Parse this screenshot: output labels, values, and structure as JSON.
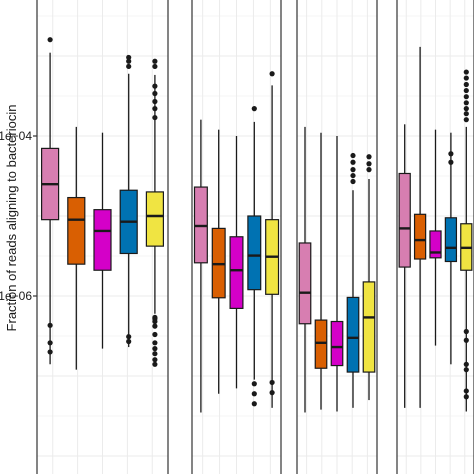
{
  "chart_data": {
    "type": "box",
    "ylabel": "Fraction of reads aligning to bacteriocin",
    "yscale": "log",
    "ylim": [
      3e-08,
      0.006
    ],
    "yticks": [
      {
        "value": 0.0001,
        "label": "1e−04"
      },
      {
        "value": 1e-06,
        "label": "1e−06"
      }
    ],
    "grid": true,
    "colors": [
      "#d77eb1",
      "#d95f02",
      "#d400c8",
      "#0072b2",
      "#f0e442"
    ],
    "panels": [
      {
        "boxes": [
          {
            "q1": 9e-06,
            "median": 2.5e-05,
            "q3": 7e-05,
            "whisker_low": 1.4e-07,
            "whisker_high": 0.0011,
            "outliers": [
              2e-07,
              2.6e-07,
              4.3e-07,
              0.0016
            ]
          },
          {
            "q1": 2.5e-06,
            "median": 9e-06,
            "q3": 1.7e-05,
            "whisker_low": 1.2e-07,
            "whisker_high": 0.00013
          },
          {
            "q1": 2.1e-06,
            "median": 6.5e-06,
            "q3": 1.2e-05,
            "whisker_low": 2.2e-07,
            "whisker_high": 0.00011
          },
          {
            "q1": 3.4e-06,
            "median": 8.5e-06,
            "q3": 2.1e-05,
            "whisker_low": 2.3e-07,
            "whisker_high": 0.0006,
            "outliers": [
              2.7e-07,
              3.1e-07,
              0.00074,
              0.00086,
              0.00096
            ]
          },
          {
            "q1": 4.2e-06,
            "median": 1e-05,
            "q3": 2e-05,
            "whisker_low": 6e-07,
            "whisker_high": 0.00058,
            "outliers": [
              1.4e-07,
              1.6e-07,
              1.9e-07,
              2.2e-07,
              2.6e-07,
              3.3e-07,
              4.2e-07,
              4.8e-07,
              5.2e-07,
              5.4e-07,
              0.00017,
              0.00022,
              0.00027,
              0.00034,
              0.00042,
              0.00074,
              0.00086
            ]
          }
        ]
      },
      {
        "boxes": [
          {
            "q1": 2.6e-06,
            "median": 7.5e-06,
            "q3": 2.3e-05,
            "whisker_low": 3.5e-08,
            "whisker_high": 0.00016
          },
          {
            "q1": 9.5e-07,
            "median": 2.5e-06,
            "q3": 7e-06,
            "whisker_low": 6e-08,
            "whisker_high": 0.00012
          },
          {
            "q1": 7e-07,
            "median": 2.1e-06,
            "q3": 5.5e-06,
            "whisker_low": 7e-08,
            "whisker_high": 0.0001
          },
          {
            "q1": 1.2e-06,
            "median": 3.2e-06,
            "q3": 1e-05,
            "whisker_low": 9e-08,
            "whisker_high": 0.00015,
            "outliers": [
              4.5e-08,
              6e-08,
              8e-08,
              0.00022
            ]
          },
          {
            "q1": 1.05e-06,
            "median": 3.1e-06,
            "q3": 9e-06,
            "whisker_low": 4e-08,
            "whisker_high": 0.00043,
            "outliers": [
              6.2e-08,
              8.3e-08,
              0.0006
            ]
          }
        ]
      },
      {
        "boxes": [
          {
            "q1": 4.5e-07,
            "median": 1.1e-06,
            "q3": 4.6e-06,
            "whisker_low": 3.5e-08,
            "whisker_high": 0.00013
          },
          {
            "q1": 1.25e-07,
            "median": 2.6e-07,
            "q3": 5e-07,
            "whisker_low": 3.8e-08,
            "whisker_high": 0.00011
          },
          {
            "q1": 1.35e-07,
            "median": 2.3e-07,
            "q3": 4.8e-07,
            "whisker_low": 3.6e-08,
            "whisker_high": 0.0001
          },
          {
            "q1": 1.12e-07,
            "median": 3e-07,
            "q3": 9.6e-07,
            "whisker_low": 4e-08,
            "whisker_high": 2.1e-05,
            "outliers": [
              2.7e-05,
              3.2e-05,
              3.8e-05,
              4.7e-05,
              5.7e-05
            ]
          },
          {
            "q1": 1.12e-07,
            "median": 5.4e-07,
            "q3": 1.5e-06,
            "whisker_low": 5e-08,
            "whisker_high": 2.9e-05,
            "outliers": [
              3.8e-05,
              4.5e-05,
              5.5e-05
            ]
          }
        ]
      },
      {
        "boxes": [
          {
            "q1": 2.3e-06,
            "median": 7e-06,
            "q3": 3.4e-05,
            "whisker_low": 4e-08,
            "whisker_high": 0.00014
          },
          {
            "q1": 2.9e-06,
            "median": 5e-06,
            "q3": 1.05e-05,
            "whisker_low": 4e-08,
            "whisker_high": 0.0013
          },
          {
            "q1": 3e-06,
            "median": 3.5e-06,
            "q3": 6.5e-06,
            "whisker_low": 2.4e-07,
            "whisker_high": 0.00012
          },
          {
            "q1": 2.7e-06,
            "median": 4e-06,
            "q3": 9.5e-06,
            "whisker_low": 1.4e-07,
            "whisker_high": 0.00011,
            "outliers": [
              4.7e-05,
              6e-05
            ]
          },
          {
            "q1": 2.1e-06,
            "median": 4e-06,
            "q3": 8e-06,
            "whisker_low": 3.6e-08,
            "whisker_high": 0.00013,
            "outliers": [
              5.5e-08,
              6.5e-08,
              1.2e-07,
              1.4e-07,
              2.8e-07,
              3.6e-07,
              0.00016,
              0.00019,
              0.00022,
              0.00026,
              0.00031,
              0.00037,
              0.00044,
              0.00053,
              0.00063
            ]
          }
        ]
      }
    ]
  }
}
